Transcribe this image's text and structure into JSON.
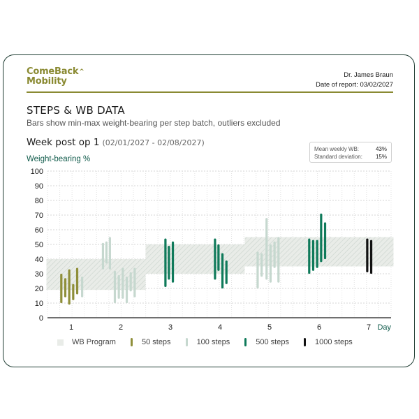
{
  "brand": {
    "line1": "ComeBack",
    "caret": "^",
    "line2": "Mobility",
    "color": "#8a8a32"
  },
  "doctor": {
    "name": "Dr. James Braun",
    "report_date": "Date of report: 03/02/2027"
  },
  "title": "STEPS & WB DATA",
  "subtitle": "Bars show min-max weight-bearing per step batch, outliers excluded",
  "week": {
    "label": "Week post op 1",
    "range": "(02/01/2027 - 02/08/2027)"
  },
  "stats": {
    "mean_label": "Mean weekly WB:",
    "mean_value": "43%",
    "sd_label": "Standard deviation:",
    "sd_value": "15%"
  },
  "legend": [
    {
      "label": "WB Program",
      "kind": "box",
      "color": "#e9ece8"
    },
    {
      "label": "50 steps",
      "kind": "bar",
      "color": "#8f8f3a"
    },
    {
      "label": "100 steps",
      "kind": "bar",
      "color": "#c6d8cf"
    },
    {
      "label": "500 steps",
      "kind": "bar",
      "color": "#0f7a5a"
    },
    {
      "label": "1000 steps",
      "kind": "bar",
      "color": "#111111"
    }
  ],
  "chart_data": {
    "type": "bar",
    "title": "STEPS & WB DATA",
    "ylabel": "Weight-bearing %",
    "xlabel": "Day",
    "ylim": [
      0,
      100
    ],
    "yticks": [
      0,
      10,
      20,
      30,
      40,
      50,
      60,
      70,
      80,
      90,
      100
    ],
    "categories": [
      "1",
      "2",
      "3",
      "4",
      "5",
      "6",
      "7"
    ],
    "program_bands": [
      {
        "from_day": 0.5,
        "to_day": 1.5,
        "min": 19,
        "max": 40
      },
      {
        "from_day": 1.5,
        "to_day": 2.5,
        "min": 19,
        "max": 40
      },
      {
        "from_day": 2.5,
        "to_day": 3.5,
        "min": 30,
        "max": 50
      },
      {
        "from_day": 3.5,
        "to_day": 4.5,
        "min": 30,
        "max": 50
      },
      {
        "from_day": 4.5,
        "to_day": 5.5,
        "min": 35,
        "max": 55
      },
      {
        "from_day": 5.5,
        "to_day": 6.5,
        "min": 35,
        "max": 55
      },
      {
        "from_day": 6.5,
        "to_day": 7.5,
        "min": 35,
        "max": 55
      }
    ],
    "series": [
      {
        "name": "50 steps",
        "color": "#8f8f3a",
        "ranges": [
          {
            "day": 1,
            "offset": -0.2,
            "min": 10,
            "max": 30
          },
          {
            "day": 1,
            "offset": -0.12,
            "min": 14,
            "max": 27
          },
          {
            "day": 1,
            "offset": -0.04,
            "min": 9,
            "max": 33
          },
          {
            "day": 1,
            "offset": 0.04,
            "min": 12,
            "max": 23
          },
          {
            "day": 1,
            "offset": 0.12,
            "min": 16,
            "max": 34
          }
        ]
      },
      {
        "name": "100 steps",
        "color": "#c6d8cf",
        "ranges": [
          {
            "day": 1,
            "offset": 0.22,
            "min": 14,
            "max": 28
          },
          {
            "day": 2,
            "offset": -0.36,
            "min": 33,
            "max": 51
          },
          {
            "day": 2,
            "offset": -0.29,
            "min": 37,
            "max": 52
          },
          {
            "day": 2,
            "offset": -0.22,
            "min": 33,
            "max": 55
          },
          {
            "day": 2,
            "offset": -0.12,
            "min": 10,
            "max": 32
          },
          {
            "day": 2,
            "offset": -0.04,
            "min": 13,
            "max": 29
          },
          {
            "day": 2,
            "offset": 0.04,
            "min": 13,
            "max": 34
          },
          {
            "day": 2,
            "offset": 0.12,
            "min": 10,
            "max": 28
          },
          {
            "day": 2,
            "offset": 0.2,
            "min": 18,
            "max": 31
          },
          {
            "day": 2,
            "offset": 0.28,
            "min": 14,
            "max": 34
          },
          {
            "day": 5,
            "offset": -0.24,
            "min": 20,
            "max": 45
          },
          {
            "day": 5,
            "offset": -0.16,
            "min": 28,
            "max": 44
          },
          {
            "day": 5,
            "offset": -0.06,
            "min": 26,
            "max": 68
          },
          {
            "day": 5,
            "offset": 0.02,
            "min": 24,
            "max": 50
          },
          {
            "day": 5,
            "offset": 0.1,
            "min": 34,
            "max": 52
          },
          {
            "day": 5,
            "offset": 0.18,
            "min": 24,
            "max": 55
          }
        ]
      },
      {
        "name": "500 steps",
        "color": "#0f7a5a",
        "ranges": [
          {
            "day": 3,
            "offset": -0.1,
            "min": 21,
            "max": 54
          },
          {
            "day": 3,
            "offset": -0.03,
            "min": 26,
            "max": 49
          },
          {
            "day": 3,
            "offset": 0.05,
            "min": 24,
            "max": 52
          },
          {
            "day": 4,
            "offset": -0.1,
            "min": 26,
            "max": 54
          },
          {
            "day": 4,
            "offset": -0.03,
            "min": 32,
            "max": 50
          },
          {
            "day": 4,
            "offset": 0.05,
            "min": 20,
            "max": 44
          },
          {
            "day": 4,
            "offset": 0.13,
            "min": 23,
            "max": 39
          },
          {
            "day": 6,
            "offset": -0.2,
            "min": 30,
            "max": 54
          },
          {
            "day": 6,
            "offset": -0.12,
            "min": 32,
            "max": 53
          },
          {
            "day": 6,
            "offset": -0.04,
            "min": 34,
            "max": 53
          },
          {
            "day": 6,
            "offset": 0.04,
            "min": 38,
            "max": 71
          },
          {
            "day": 6,
            "offset": 0.12,
            "min": 40,
            "max": 65
          }
        ]
      },
      {
        "name": "1000 steps",
        "color": "#111111",
        "ranges": [
          {
            "day": 7,
            "offset": -0.03,
            "min": 31,
            "max": 54
          },
          {
            "day": 7,
            "offset": 0.05,
            "min": 30,
            "max": 53
          }
        ]
      }
    ]
  }
}
